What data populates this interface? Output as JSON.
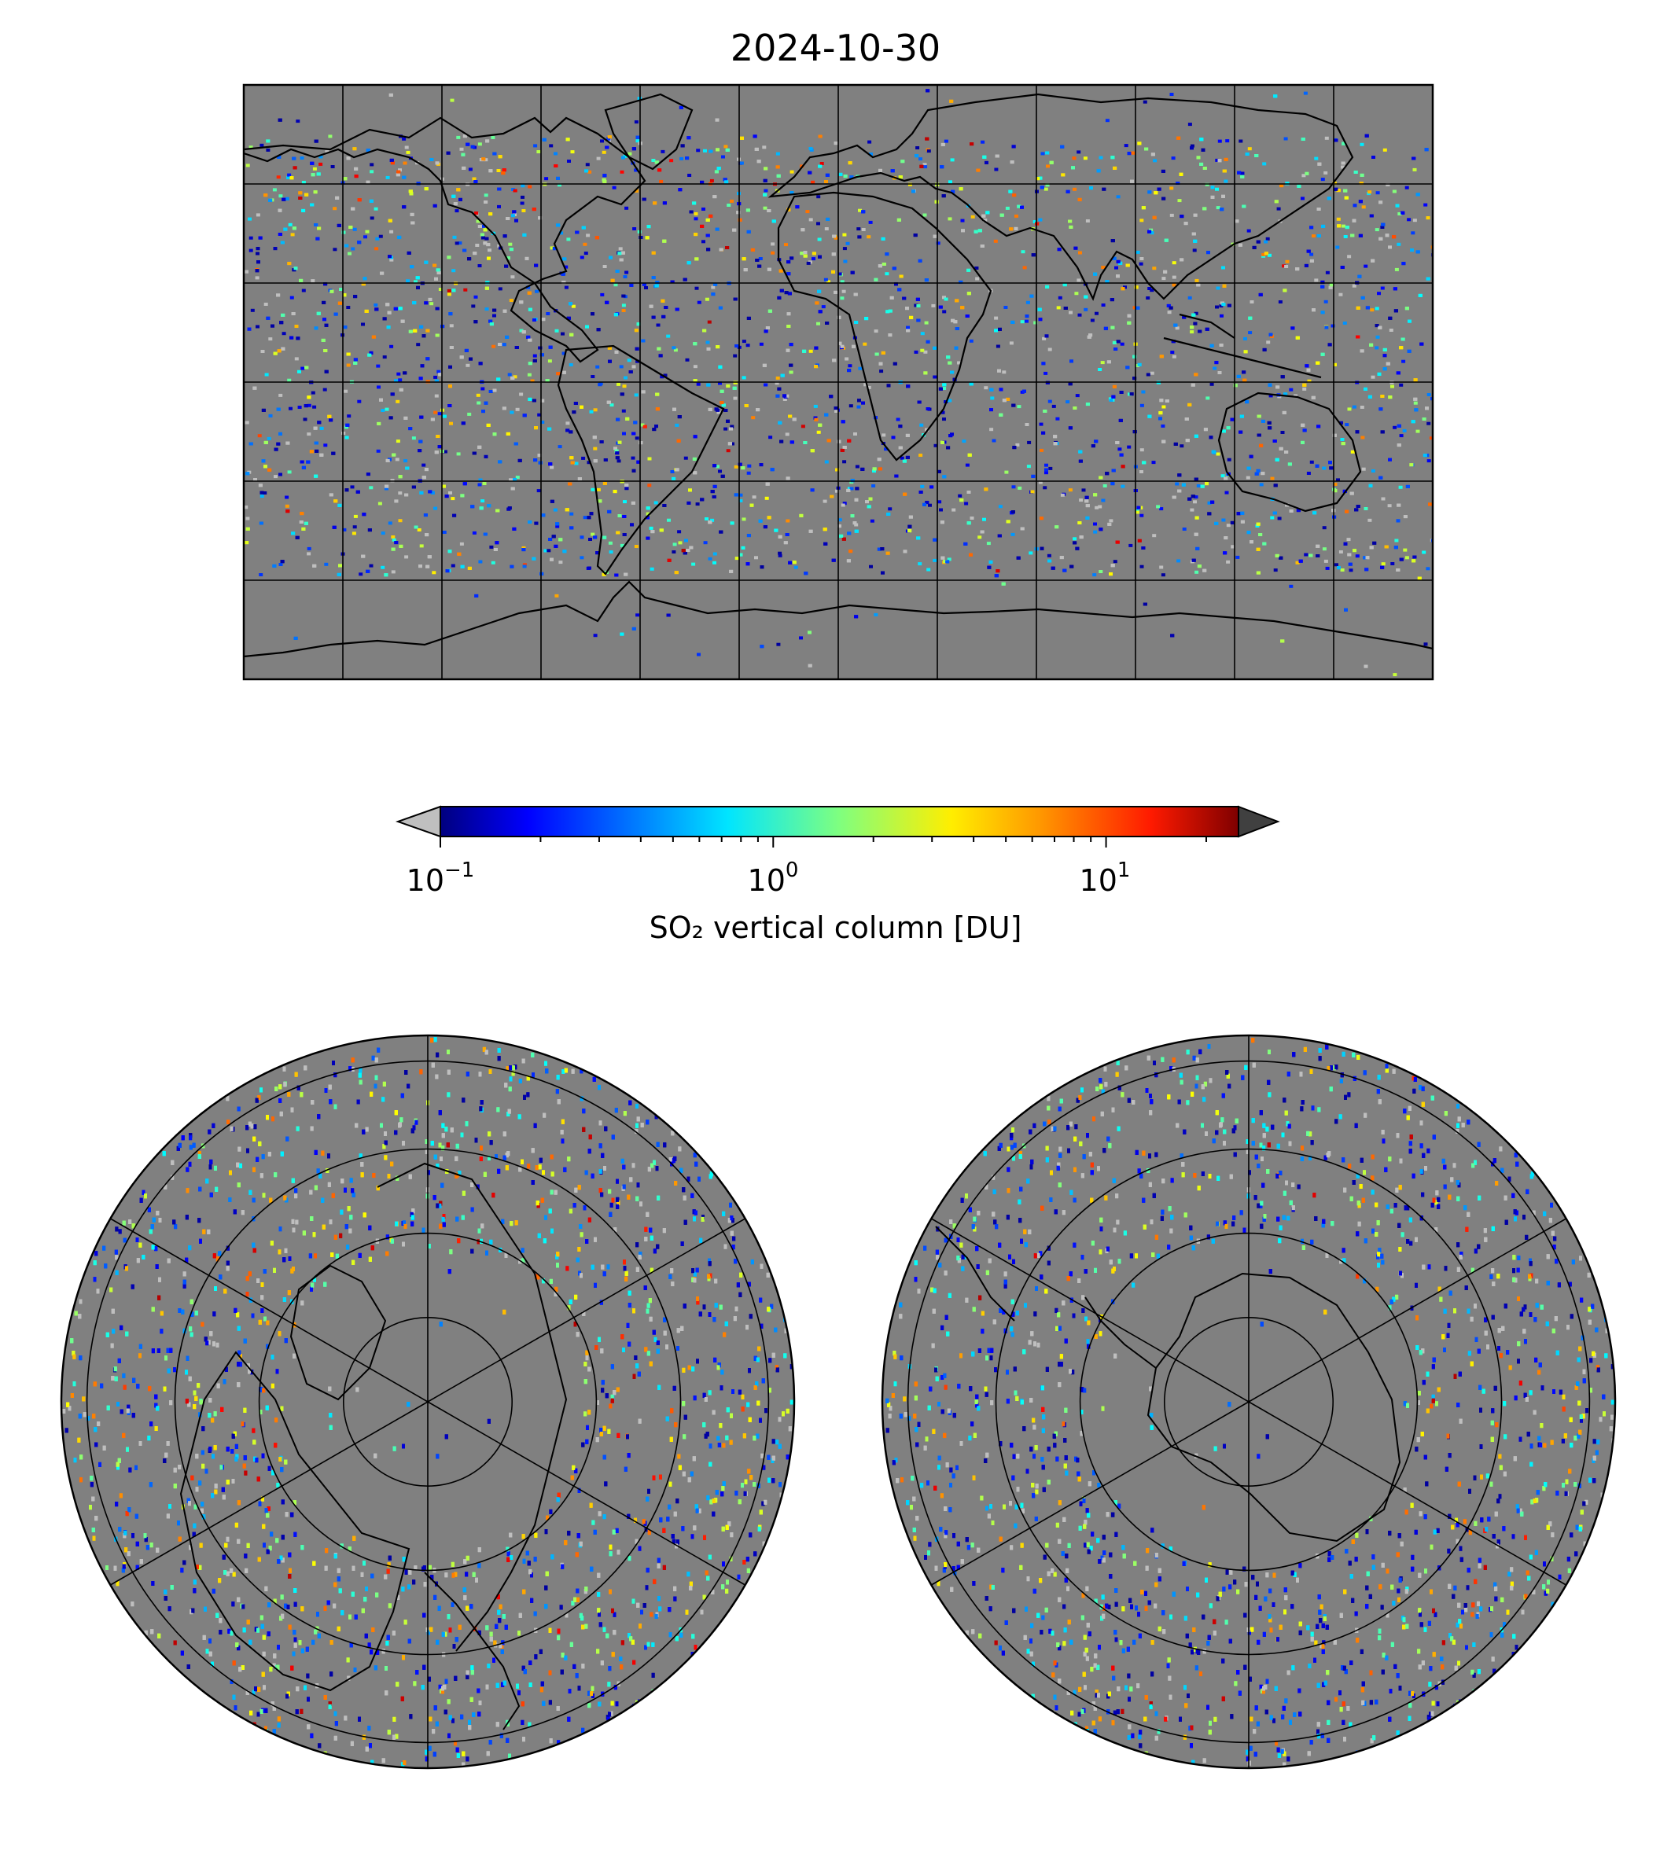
{
  "figure": {
    "date_title": "2024-10-30"
  },
  "colormap": {
    "name": "jet",
    "scale": "log",
    "range": [
      0.1,
      25
    ],
    "extend": "both",
    "under_color": "#bfbfbf",
    "over_color": "#404040",
    "ticks": [
      {
        "base": "10",
        "exp": "−1",
        "value": 0.1
      },
      {
        "base": "10",
        "exp": "0",
        "value": 1
      },
      {
        "base": "10",
        "exp": "1",
        "value": 10
      }
    ],
    "label": "SO₂ vertical column [DU]"
  },
  "maps": {
    "background_color": "#808080",
    "coastline_color": "#000000",
    "panels": [
      {
        "name": "global-equirectangular-map",
        "projection": "equirectangular",
        "lon_range": [
          -180,
          180
        ],
        "lat_range": [
          -90,
          90
        ],
        "gridlines_lon_step": 30,
        "gridlines_lat_step": 30
      },
      {
        "name": "north-polar-map",
        "projection": "north-polar-stereographic",
        "lat_min": 0,
        "gridlines_lat": [
          30,
          45,
          60,
          75
        ],
        "gridlines_lon_step": 60
      },
      {
        "name": "south-polar-map",
        "projection": "south-polar-stereographic",
        "lat_max": 0,
        "gridlines_lat": [
          -30,
          -45,
          -60,
          -75
        ],
        "gridlines_lon_step": 60
      }
    ]
  }
}
